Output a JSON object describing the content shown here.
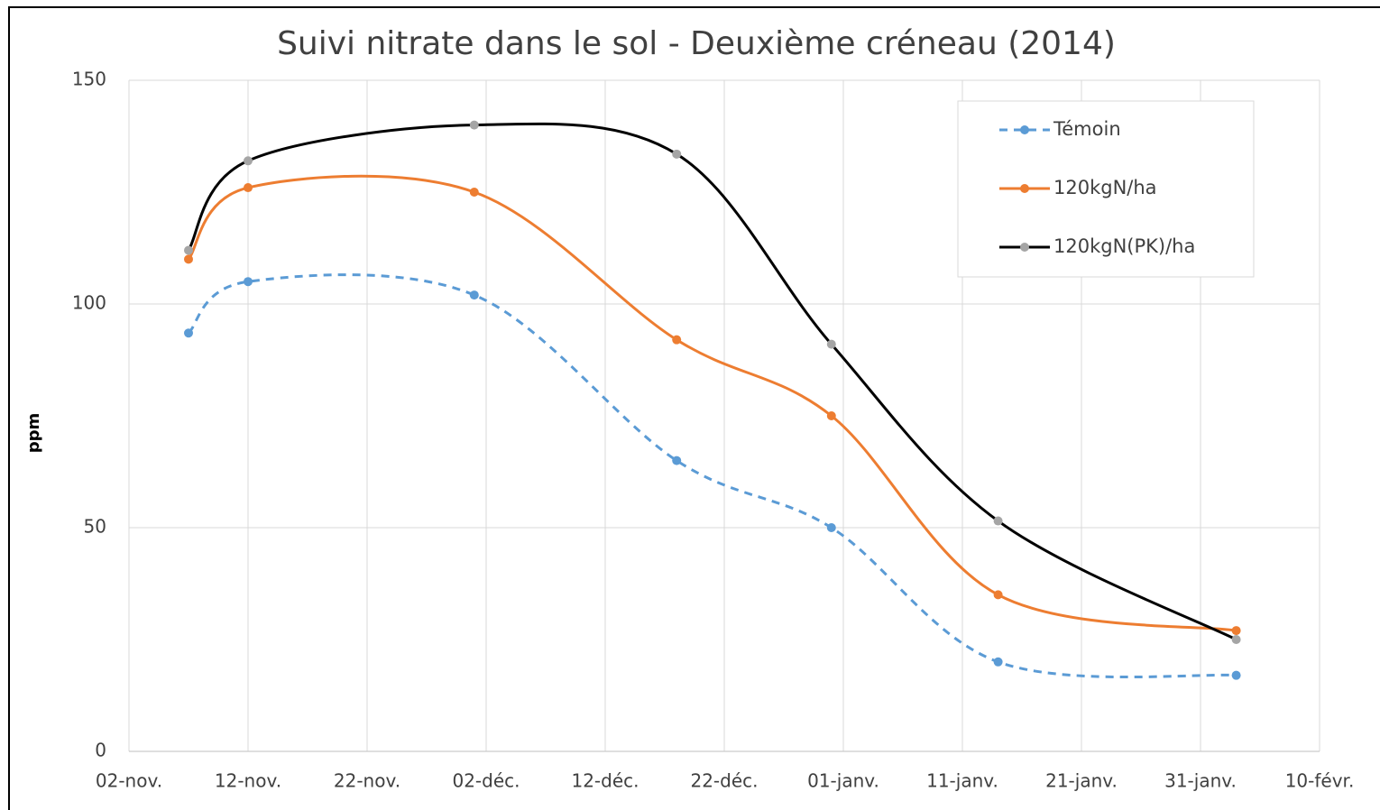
{
  "chart_data": {
    "type": "line",
    "title": "Suivi nitrate dans le sol -  Deuxième créneau (2014)",
    "y_label": "ppm",
    "x": [
      5,
      10,
      29,
      46,
      59,
      73,
      93
    ],
    "xlim": [
      0,
      100
    ],
    "xticks": [
      {
        "value": 0,
        "label": "02-nov."
      },
      {
        "value": 10,
        "label": "12-nov."
      },
      {
        "value": 20,
        "label": "22-nov."
      },
      {
        "value": 30,
        "label": "02-déc."
      },
      {
        "value": 40,
        "label": "12-déc."
      },
      {
        "value": 50,
        "label": "22-déc."
      },
      {
        "value": 60,
        "label": "01-janv."
      },
      {
        "value": 70,
        "label": "11-janv."
      },
      {
        "value": 80,
        "label": "21-janv."
      },
      {
        "value": 90,
        "label": "31-janv."
      },
      {
        "value": 100,
        "label": "10-févr."
      }
    ],
    "ylim": [
      0,
      150
    ],
    "yticks": [
      0,
      50,
      100,
      150
    ],
    "grid": true,
    "legend": "top-right",
    "series": [
      {
        "name": "Témoin",
        "color": "#5b9bd5",
        "marker_color": "#5b9bd5",
        "dashed": true,
        "values": [
          93.5,
          105,
          102,
          65,
          50,
          20,
          17
        ]
      },
      {
        "name": "120kgN/ha",
        "color": "#ed7d31",
        "marker_color": "#ed7d31",
        "dashed": false,
        "values": [
          110,
          126,
          125,
          92,
          75,
          35,
          27
        ]
      },
      {
        "name": "120kgN(PK)/ha",
        "color": "#000000",
        "marker_color": "#a5a5a5",
        "dashed": false,
        "values": [
          112,
          132,
          140,
          133.5,
          91,
          51.5,
          25
        ]
      }
    ]
  }
}
